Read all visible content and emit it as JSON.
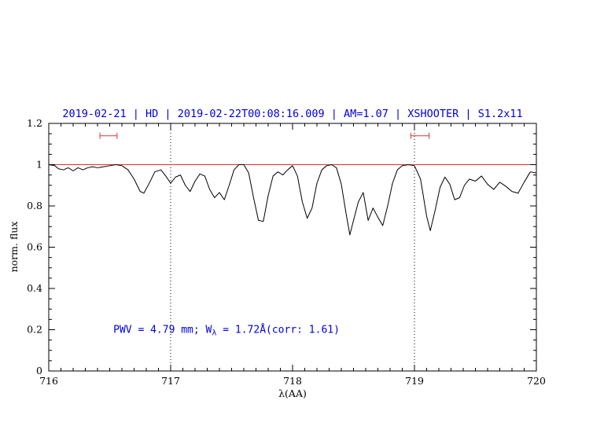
{
  "colors": {
    "axis": "#000000",
    "blue": "#0000dd",
    "red": "#dd3333",
    "background": "#ffffff"
  },
  "chart_data": {
    "type": "line",
    "title": "2019-02-21 | HD | 2019-02-22T00:08:16.009 | AM=1.07 | XSHOOTER | S1.2x11",
    "xlabel": "λ(AA)",
    "ylabel": "norm. flux",
    "xlim": [
      716,
      720
    ],
    "ylim": [
      0,
      1.2
    ],
    "x_ticks": [
      716,
      717,
      718,
      719,
      720
    ],
    "x_tick_labels": [
      "716",
      "717",
      "718",
      "719",
      "720"
    ],
    "y_ticks": [
      0,
      0.2,
      0.4,
      0.6,
      0.8,
      1,
      1.2
    ],
    "y_tick_labels": [
      "0",
      "0.2",
      "0.4",
      "0.6",
      "0.8",
      "1",
      "1.2"
    ],
    "x_minor_step": 0.1,
    "y_minor_step": 0.05,
    "grid": false,
    "legend": "none",
    "dotted_vlines": [
      717,
      719
    ],
    "reference_hline": {
      "y": 1.0
    },
    "range_markers": [
      {
        "x_start": 716.42,
        "x_end": 716.56,
        "y": 1.14
      },
      {
        "x_start": 718.97,
        "x_end": 719.12,
        "y": 1.14
      }
    ],
    "annotation": {
      "prefix": "PWV = 4.79 mm; W",
      "sub": "λ",
      "suffix": " = 1.72Å(corr: 1.61)",
      "x": 716.53,
      "y": 0.185
    },
    "series": [
      {
        "name": "spectrum",
        "color": "#000000",
        "x": [
          716.0,
          716.05,
          716.08,
          716.12,
          716.16,
          716.2,
          716.24,
          716.28,
          716.32,
          716.36,
          716.4,
          716.45,
          716.5,
          716.55,
          716.6,
          716.65,
          716.7,
          716.75,
          716.78,
          716.82,
          716.87,
          716.92,
          716.96,
          717.0,
          717.04,
          717.08,
          717.12,
          717.16,
          717.2,
          717.24,
          717.28,
          717.32,
          717.36,
          717.4,
          717.44,
          717.48,
          717.52,
          717.56,
          717.6,
          717.64,
          717.68,
          717.72,
          717.76,
          717.8,
          717.84,
          717.88,
          717.92,
          717.96,
          718.0,
          718.04,
          718.08,
          718.12,
          718.16,
          718.2,
          718.24,
          718.28,
          718.32,
          718.36,
          718.4,
          718.44,
          718.47,
          718.5,
          718.54,
          718.58,
          718.62,
          718.66,
          718.7,
          718.74,
          718.78,
          718.82,
          718.86,
          718.9,
          718.95,
          719.0,
          719.05,
          719.1,
          719.13,
          719.17,
          719.21,
          719.25,
          719.29,
          719.33,
          719.37,
          719.41,
          719.45,
          719.5,
          719.55,
          719.6,
          719.65,
          719.7,
          719.75,
          719.8,
          719.85,
          719.9,
          719.95,
          720.0
        ],
        "y": [
          1.0,
          0.995,
          0.98,
          0.975,
          0.985,
          0.97,
          0.985,
          0.975,
          0.985,
          0.99,
          0.985,
          0.99,
          0.995,
          1.0,
          0.995,
          0.975,
          0.93,
          0.87,
          0.862,
          0.905,
          0.965,
          0.975,
          0.945,
          0.91,
          0.94,
          0.95,
          0.9,
          0.87,
          0.92,
          0.955,
          0.945,
          0.88,
          0.84,
          0.865,
          0.83,
          0.9,
          0.975,
          1.0,
          1.0,
          0.96,
          0.84,
          0.73,
          0.725,
          0.85,
          0.945,
          0.965,
          0.95,
          0.975,
          0.995,
          0.945,
          0.82,
          0.74,
          0.79,
          0.91,
          0.975,
          0.995,
          1.0,
          0.985,
          0.905,
          0.76,
          0.66,
          0.73,
          0.82,
          0.865,
          0.73,
          0.79,
          0.745,
          0.705,
          0.8,
          0.91,
          0.975,
          0.995,
          1.0,
          0.995,
          0.93,
          0.75,
          0.68,
          0.78,
          0.89,
          0.94,
          0.905,
          0.83,
          0.84,
          0.9,
          0.93,
          0.92,
          0.945,
          0.905,
          0.88,
          0.915,
          0.895,
          0.87,
          0.862,
          0.915,
          0.965,
          0.96
        ]
      }
    ]
  }
}
